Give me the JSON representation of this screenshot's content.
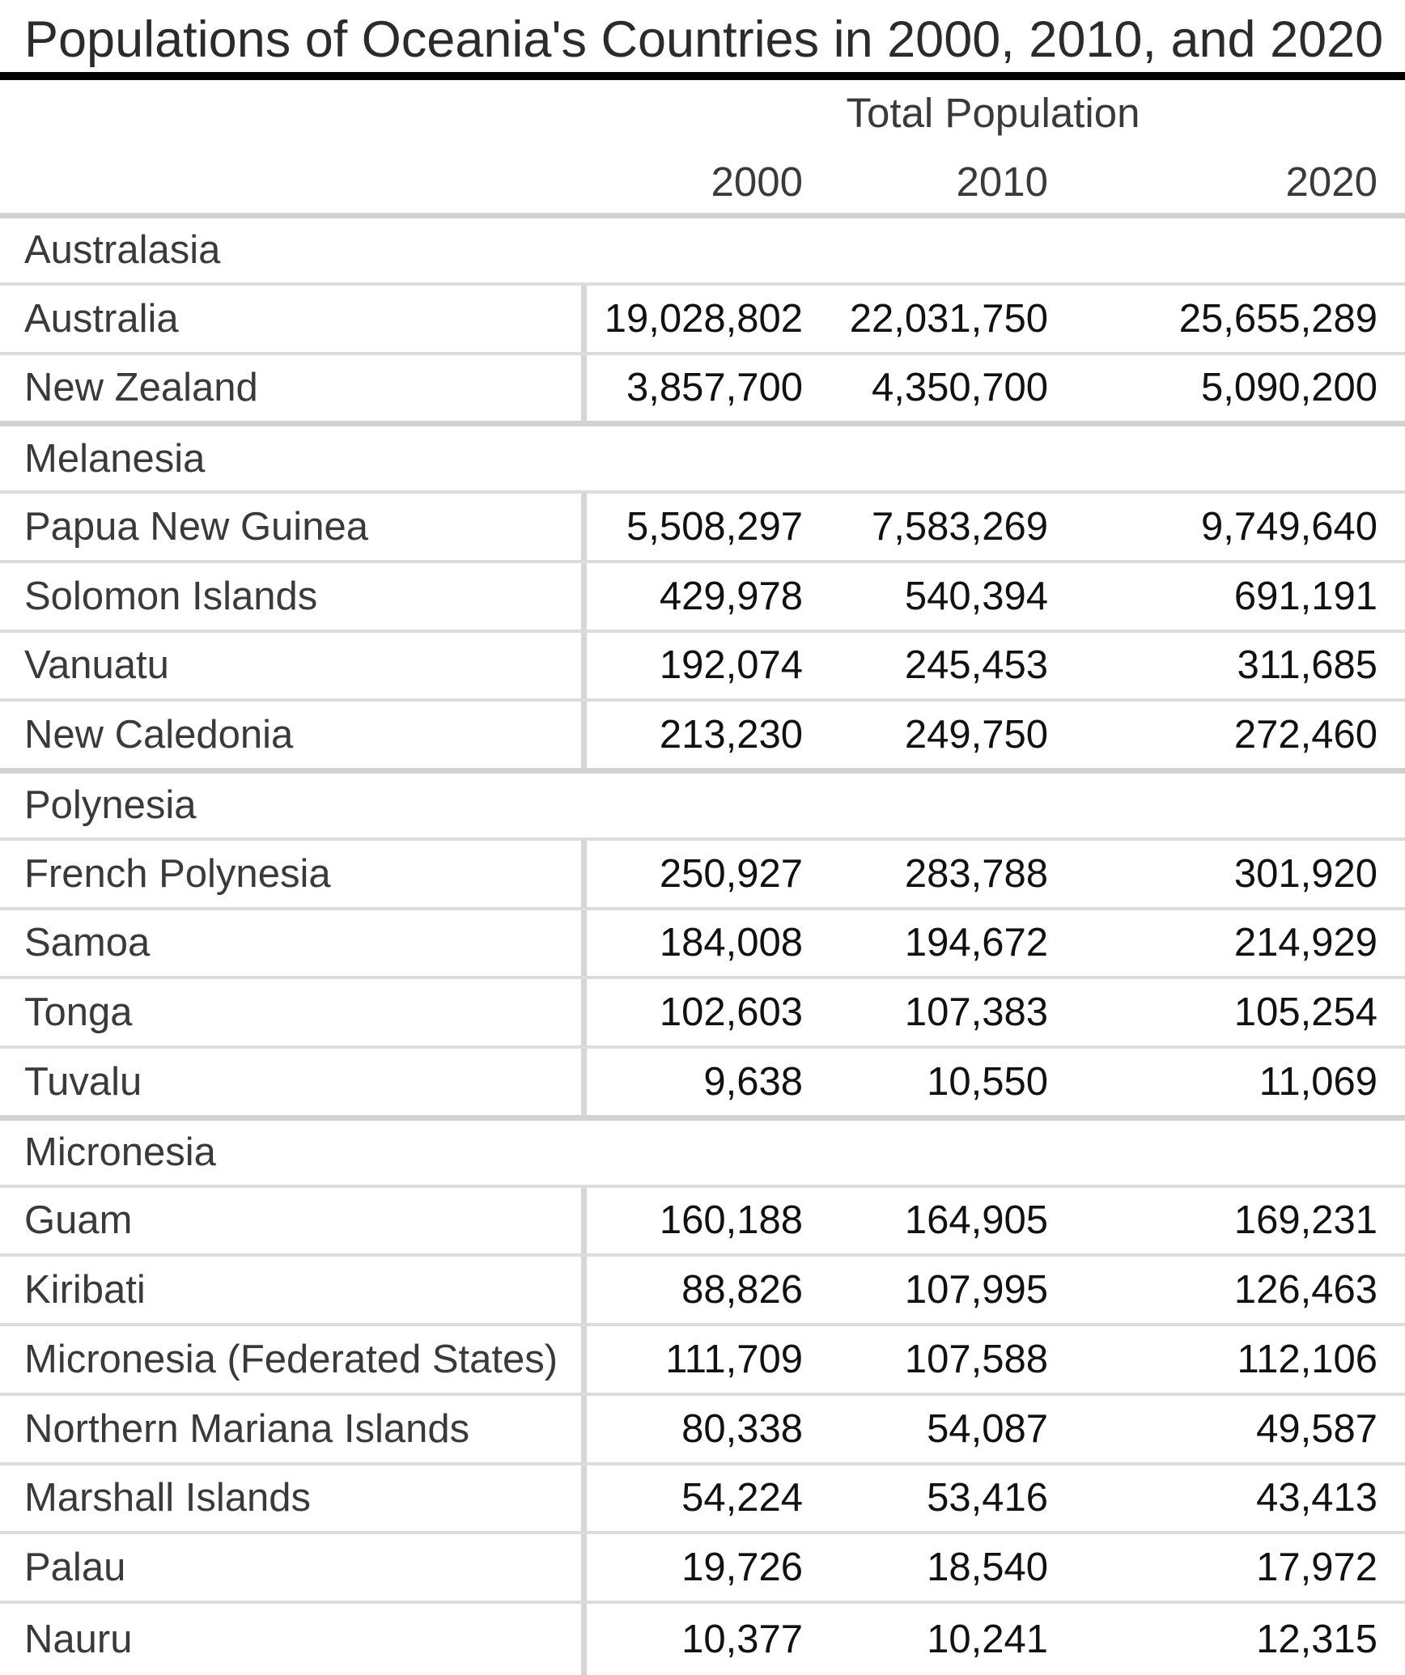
{
  "title": "Populations of Oceania's Countries in 2000, 2010, and 2020",
  "colors": {
    "title_rule": "#000000",
    "grid_line": "#dcdcdc",
    "section_line": "#d2d2d2",
    "heading_text": "#3a3a3a",
    "number_text": "#111111",
    "background": "#ffffff"
  },
  "chart_data": {
    "type": "table",
    "title": "Populations of Oceania's Countries in 2000, 2010, and 2020",
    "column_group_label": "Total Population",
    "columns": [
      "2000",
      "2010",
      "2020"
    ],
    "sections": [
      {
        "name": "Australasia",
        "rows": [
          {
            "country": "Australia",
            "values": [
              19028802,
              22031750,
              25655289
            ]
          },
          {
            "country": "New Zealand",
            "values": [
              3857700,
              4350700,
              5090200
            ]
          }
        ]
      },
      {
        "name": "Melanesia",
        "rows": [
          {
            "country": "Papua New Guinea",
            "values": [
              5508297,
              7583269,
              9749640
            ]
          },
          {
            "country": "Solomon Islands",
            "values": [
              429978,
              540394,
              691191
            ]
          },
          {
            "country": "Vanuatu",
            "values": [
              192074,
              245453,
              311685
            ]
          },
          {
            "country": "New Caledonia",
            "values": [
              213230,
              249750,
              272460
            ]
          }
        ]
      },
      {
        "name": "Polynesia",
        "rows": [
          {
            "country": "French Polynesia",
            "values": [
              250927,
              283788,
              301920
            ]
          },
          {
            "country": "Samoa",
            "values": [
              184008,
              194672,
              214929
            ]
          },
          {
            "country": "Tonga",
            "values": [
              102603,
              107383,
              105254
            ]
          },
          {
            "country": "Tuvalu",
            "values": [
              9638,
              10550,
              11069
            ]
          }
        ]
      },
      {
        "name": "Micronesia",
        "rows": [
          {
            "country": "Guam",
            "values": [
              160188,
              164905,
              169231
            ]
          },
          {
            "country": "Kiribati",
            "values": [
              88826,
              107995,
              126463
            ]
          },
          {
            "country": "Micronesia (Federated States)",
            "values": [
              111709,
              107588,
              112106
            ]
          },
          {
            "country": "Northern Mariana Islands",
            "values": [
              80338,
              54087,
              49587
            ]
          },
          {
            "country": "Marshall Islands",
            "values": [
              54224,
              53416,
              43413
            ]
          },
          {
            "country": "Palau",
            "values": [
              19726,
              18540,
              17972
            ]
          },
          {
            "country": "Nauru",
            "values": [
              10377,
              10241,
              12315
            ]
          }
        ]
      }
    ]
  }
}
